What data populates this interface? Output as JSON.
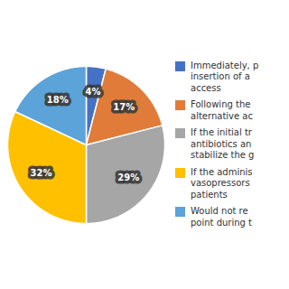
{
  "chart_data": {
    "type": "pie",
    "categories": [
      "Immediately, p\ninsertion of a\naccess",
      "Following the\nalternative ac",
      "If the initial tr\nantibiotics an\nstabilize the g",
      "If the adminis\nvasopressors\npatients",
      "Would not re\npoint during t"
    ],
    "values": [
      4,
      17,
      29,
      32,
      18
    ],
    "value_labels": [
      "4%",
      "17%",
      "29%",
      "32%",
      "18%"
    ],
    "colors": [
      "#4472C4",
      "#E07B39",
      "#A6A6A6",
      "#FFC000",
      "#5BA3D9"
    ],
    "data_labels": true,
    "legend": "right"
  }
}
